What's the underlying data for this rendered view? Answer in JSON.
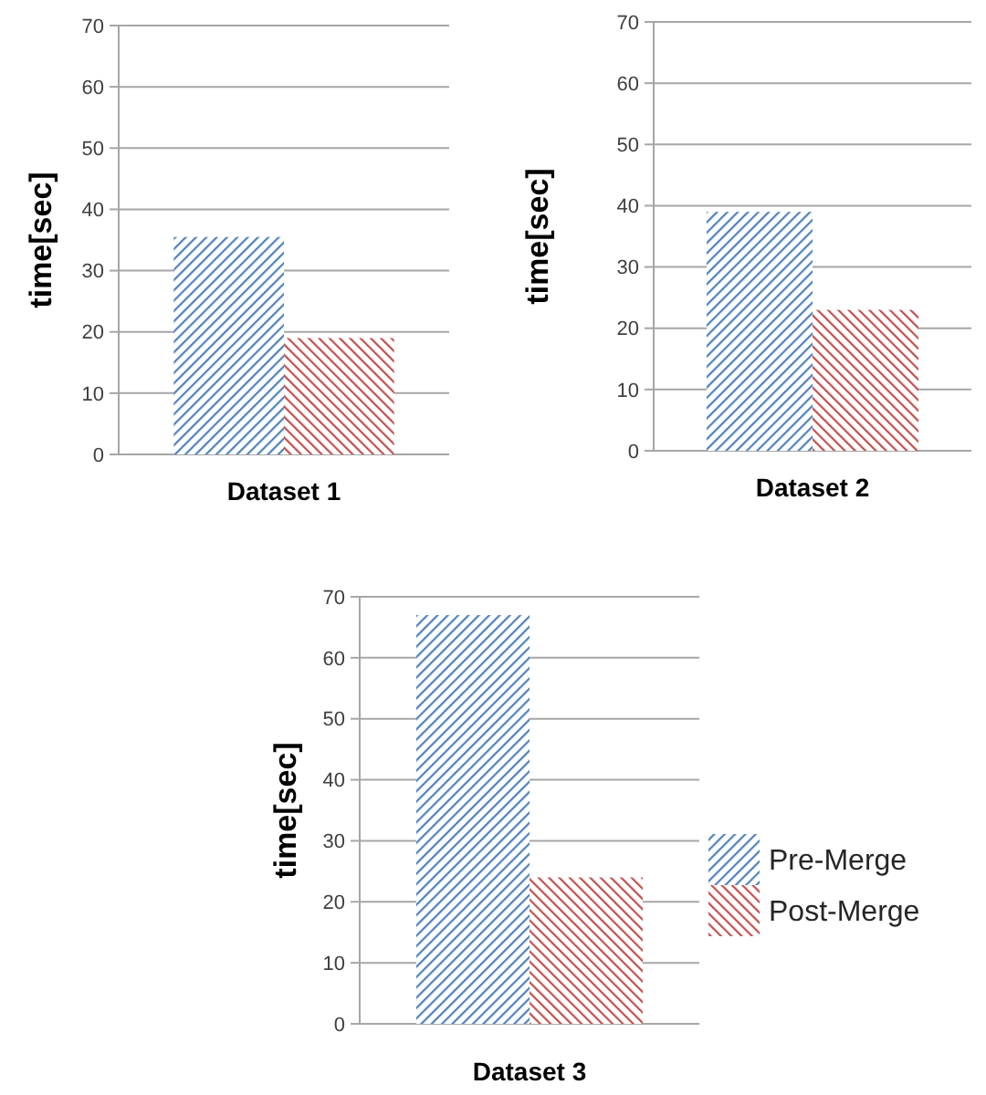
{
  "chart_data": [
    {
      "type": "bar",
      "categories": [
        "Dataset 1"
      ],
      "ylabel": "time[sec]",
      "ylim": [
        0,
        70
      ],
      "yticks": [
        0,
        10,
        20,
        30,
        40,
        50,
        60,
        70
      ],
      "grid": "y",
      "legend": false,
      "series": [
        {
          "color": "#4f81bd",
          "values": [
            35.5
          ]
        },
        {
          "color": "#c0504d",
          "values": [
            19
          ]
        }
      ]
    },
    {
      "type": "bar",
      "categories": [
        "Dataset 2"
      ],
      "ylabel": "time[sec]",
      "ylim": [
        0,
        70
      ],
      "yticks": [
        0,
        10,
        20,
        30,
        40,
        50,
        60,
        70
      ],
      "grid": "y",
      "legend": false,
      "series": [
        {
          "color": "#4f81bd",
          "values": [
            39
          ]
        },
        {
          "color": "#c0504d",
          "values": [
            23
          ]
        }
      ]
    },
    {
      "type": "bar",
      "categories": [
        "Dataset 3"
      ],
      "ylabel": "time[sec]",
      "ylim": [
        0,
        70
      ],
      "yticks": [
        0,
        10,
        20,
        30,
        40,
        50,
        60,
        70
      ],
      "grid": "y",
      "legend": "right",
      "series": [
        {
          "name": "Pre-Merge",
          "color": "#4f81bd",
          "values": [
            67
          ]
        },
        {
          "name": "Post-Merge",
          "color": "#c0504d",
          "values": [
            24
          ]
        }
      ]
    }
  ]
}
